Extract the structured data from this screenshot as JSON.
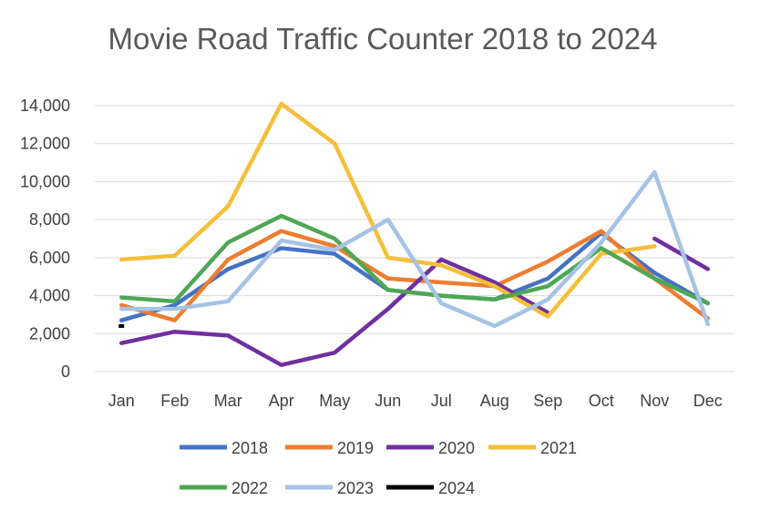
{
  "chart_data": {
    "type": "line",
    "title": "Movie Road Traffic Counter 2018 to 2024",
    "xlabel": "",
    "ylabel": "",
    "categories": [
      "Jan",
      "Feb",
      "Mar",
      "Apr",
      "May",
      "Jun",
      "Jul",
      "Aug",
      "Sep",
      "Oct",
      "Nov",
      "Dec"
    ],
    "ylim": [
      0,
      14000
    ],
    "yticks": [
      0,
      2000,
      4000,
      6000,
      8000,
      10000,
      12000,
      14000
    ],
    "ytick_labels": [
      "0",
      "2,000",
      "4,000",
      "6,000",
      "8,000",
      "10,000",
      "12,000",
      "14,000"
    ],
    "grid": true,
    "legend_position": "bottom",
    "series": [
      {
        "name": "2018",
        "color": "#4472C4",
        "values": [
          2700,
          3500,
          5400,
          6500,
          6200,
          4300,
          4000,
          3800,
          4900,
          7300,
          5200,
          3600
        ]
      },
      {
        "name": "2019",
        "color": "#ED7D31",
        "values": [
          3500,
          2700,
          5900,
          7400,
          6600,
          4900,
          4700,
          4500,
          5800,
          7400,
          4900,
          2800
        ]
      },
      {
        "name": "2020",
        "color": "#7030A0",
        "values": [
          1500,
          2100,
          1900,
          350,
          1000,
          3300,
          5900,
          4700,
          3100,
          null,
          7000,
          5400
        ]
      },
      {
        "name": "2021",
        "color": "#F4BF3A",
        "values": [
          5900,
          6100,
          8700,
          14100,
          12000,
          6000,
          5600,
          4500,
          2900,
          6200,
          6600,
          null
        ]
      },
      {
        "name": "2022",
        "color": "#4EA755",
        "values": [
          3900,
          3700,
          6800,
          8200,
          7000,
          4300,
          4000,
          3800,
          4500,
          6500,
          4900,
          3600
        ]
      },
      {
        "name": "2023",
        "color": "#A5C3E5",
        "values": [
          3300,
          3300,
          3700,
          6900,
          6400,
          8000,
          3600,
          2400,
          3800,
          6800,
          10500,
          2500
        ]
      },
      {
        "name": "2024",
        "color": "#000000",
        "values": [
          2400,
          null,
          null,
          null,
          null,
          null,
          null,
          null,
          null,
          null,
          null,
          null
        ]
      }
    ]
  }
}
